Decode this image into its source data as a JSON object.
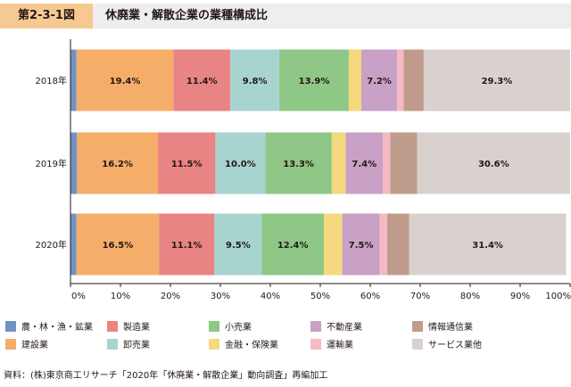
{
  "figure": {
    "label": "第2-3-1図",
    "title": "休廃業・解散企業の業種構成比",
    "source": "資料：(株)東京商工リサーチ「2020年「休廃業・解散企業」動向調査」再編加工"
  },
  "chart_data": {
    "type": "bar",
    "orientation": "horizontal",
    "stacked": true,
    "title": "休廃業・解散企業の業種構成比",
    "categories": [
      "2018年",
      "2019年",
      "2020年"
    ],
    "xlim": [
      0,
      100
    ],
    "x_ticks": [
      "0%",
      "10%",
      "20%",
      "30%",
      "40%",
      "50%",
      "60%",
      "70%",
      "80%",
      "90%",
      "100%"
    ],
    "grid": false,
    "legend_position": "bottom",
    "series": [
      {
        "name": "農・林・漁・鉱業",
        "color": "#6f93c3",
        "values": [
          1.2,
          1.3,
          1.2
        ],
        "labels": [
          "",
          "",
          ""
        ]
      },
      {
        "name": "建設業",
        "color": "#f5ad6a",
        "values": [
          19.4,
          16.2,
          16.5
        ],
        "labels": [
          "19.4%",
          "16.2%",
          "16.5%"
        ]
      },
      {
        "name": "製造業",
        "color": "#e98484",
        "values": [
          11.4,
          11.5,
          11.1
        ],
        "labels": [
          "11.4%",
          "11.5%",
          "11.1%"
        ]
      },
      {
        "name": "卸売業",
        "color": "#a8d4d0",
        "values": [
          9.8,
          10.0,
          9.5
        ],
        "labels": [
          "9.8%",
          "10.0%",
          "9.5%"
        ]
      },
      {
        "name": "小売業",
        "color": "#8fc786",
        "values": [
          13.9,
          13.3,
          12.4
        ],
        "labels": [
          "13.9%",
          "13.3%",
          "12.4%"
        ]
      },
      {
        "name": "金融・保険業",
        "color": "#f4d97e",
        "values": [
          2.5,
          2.8,
          3.7
        ],
        "labels": [
          "",
          "",
          ""
        ]
      },
      {
        "name": "不動産業",
        "color": "#c9a0c6",
        "values": [
          7.2,
          7.4,
          7.5
        ],
        "labels": [
          "7.2%",
          "7.4%",
          "7.5%"
        ]
      },
      {
        "name": "運輸業",
        "color": "#f7b9c4",
        "values": [
          1.3,
          1.5,
          1.5
        ],
        "labels": [
          "",
          "",
          ""
        ]
      },
      {
        "name": "情報通信業",
        "color": "#bf9c8b",
        "values": [
          4.0,
          5.4,
          4.4
        ],
        "labels": [
          "",
          "",
          ""
        ]
      },
      {
        "name": "サービス業他",
        "color": "#d8d1cd",
        "values": [
          29.3,
          30.6,
          31.4
        ],
        "labels": [
          "29.3%",
          "30.6%",
          "31.4%"
        ]
      }
    ]
  }
}
